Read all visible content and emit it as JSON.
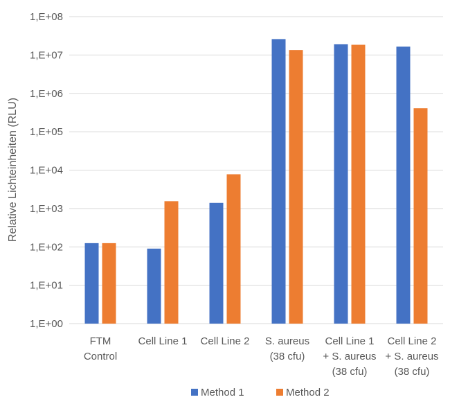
{
  "chart_data": {
    "type": "bar",
    "title": "",
    "xlabel": "",
    "ylabel": "Relative Lichteinheiten (RLU)",
    "y_scale": "log",
    "ylim": [
      1,
      100000000
    ],
    "y_tick_labels": [
      "1,E+00",
      "1,E+01",
      "1,E+02",
      "1,E+03",
      "1,E+04",
      "1,E+05",
      "1,E+06",
      "1,E+07",
      "1,E+08"
    ],
    "categories": [
      [
        "FTM",
        "Control"
      ],
      [
        "Cell Line 1"
      ],
      [
        "Cell Line 2"
      ],
      [
        "S. aureus",
        "(38 cfu)"
      ],
      [
        "Cell Line 1",
        "+ S. aureus",
        "(38 cfu)"
      ],
      [
        "Cell Line 2",
        "+ S. aureus",
        "(38 cfu)"
      ]
    ],
    "series": [
      {
        "name": "Method 1",
        "color": "#4472c4",
        "values": [
          125,
          90,
          1400,
          26000000,
          19000000,
          16500000
        ]
      },
      {
        "name": "Method 2",
        "color": "#ed7d31",
        "values": [
          125,
          1550,
          7800,
          13500000,
          18500000,
          410000
        ]
      }
    ],
    "grid": true,
    "legend": "bottom"
  }
}
